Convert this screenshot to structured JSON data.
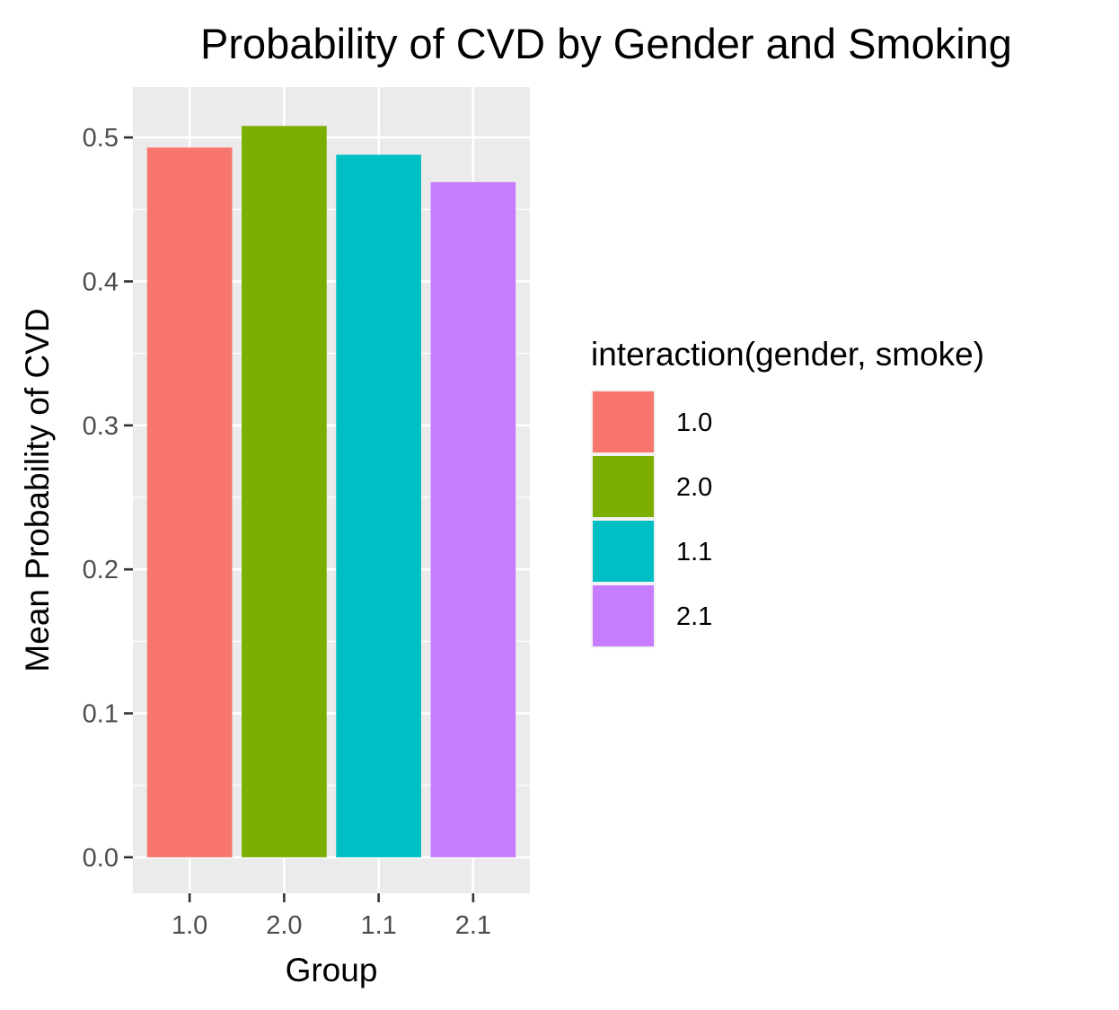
{
  "chart_data": {
    "type": "bar",
    "title": "Probability of CVD by Gender and Smoking",
    "xlabel": "Group",
    "ylabel": "Mean Probability of CVD",
    "categories": [
      "1.0",
      "2.0",
      "1.1",
      "2.1"
    ],
    "values": [
      0.493,
      0.508,
      0.488,
      0.469
    ],
    "colors": [
      "#F8766D",
      "#7CAE00",
      "#00BFC4",
      "#C77CFF"
    ],
    "ylim": [
      -0.025,
      0.535
    ],
    "yticks": [
      0.0,
      0.1,
      0.2,
      0.3,
      0.4,
      0.5
    ],
    "ytick_labels": [
      "0.0",
      "0.1",
      "0.2",
      "0.3",
      "0.4",
      "0.5"
    ],
    "grid": true,
    "panel_background": "#EBEBEB",
    "legend": {
      "title": "interaction(gender, smoke)",
      "position": "right",
      "entries": [
        "1.0",
        "2.0",
        "1.1",
        "2.1"
      ]
    }
  }
}
